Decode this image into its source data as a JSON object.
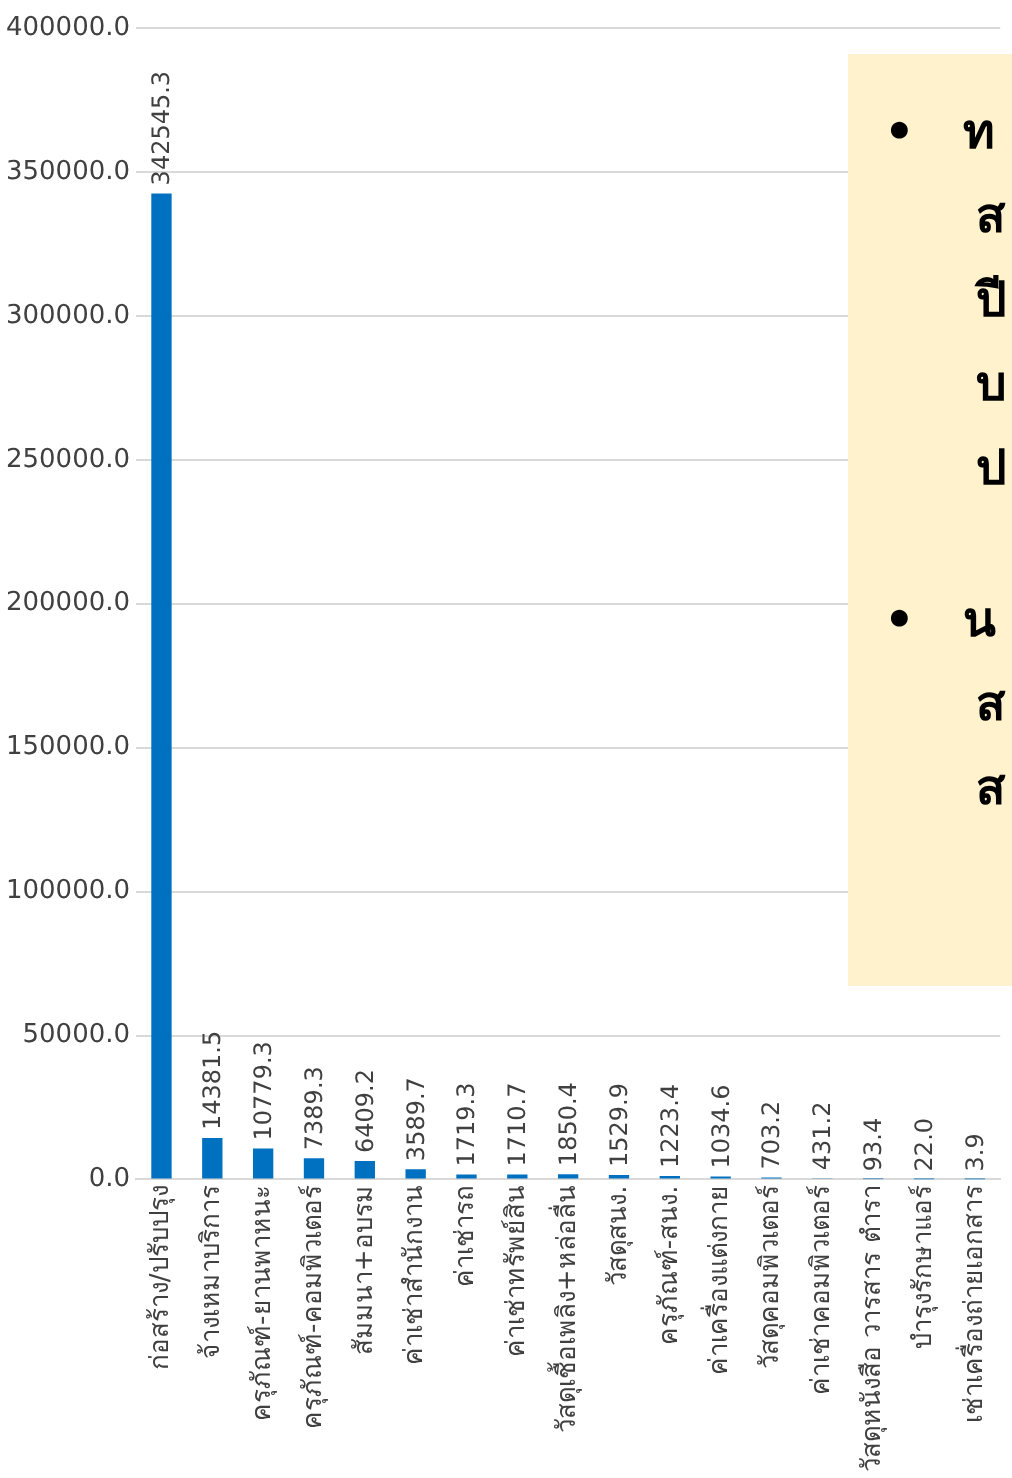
{
  "chart_data": {
    "type": "bar",
    "categories": [
      "ก่อสร้าง/ปรับปรุง",
      "จ้างเหมาบริการ",
      "ครุภัณฑ์-ยานพาหนะ",
      "ครุภัณฑ์-คอมพิวเตอร์",
      "สัมมนา+อบรม",
      "ค่าเช่าสำนักงาน",
      "ค่าเช่ารถ",
      "ค่าเช่าทรัพย์สิน",
      "วัสดุเชื้อเพลิง+หล่อลื่น",
      "วัสดุสนง.",
      "ครุภัณฑ์-สนง.",
      "ค่าเครื่องแต่งกาย",
      "วัสดุคอมพิวเตอร์",
      "ค่าเช่าคอมพิวเตอร์",
      "วัสดุหนังสือ วารสาร ตำรา",
      "บำรุงรักษาแอร์",
      "เช่าเครื่องถ่ายเอกสาร"
    ],
    "values": [
      342545.3,
      14381.5,
      10779.3,
      7389.3,
      6409.2,
      3589.7,
      1719.3,
      1710.7,
      1850.4,
      1529.9,
      1223.4,
      1034.6,
      703.2,
      431.2,
      93.4,
      22.0,
      3.9
    ],
    "value_labels": [
      "342545.3",
      "14381.5",
      "10779.3",
      "7389.3",
      "6409.2",
      "3589.7",
      "1719.3",
      "1710.7",
      "1850.4",
      "1529.9",
      "1223.4",
      "1034.6",
      "703.2",
      "431.2",
      "93.4",
      "22.0",
      "3.9"
    ],
    "color": "#0070c0",
    "ylim": [
      0,
      400000
    ],
    "yticks": [
      {
        "value": 0,
        "label": "0.0"
      },
      {
        "value": 50000,
        "label": "50000.0"
      },
      {
        "value": 100000,
        "label": "100000.0"
      },
      {
        "value": 150000,
        "label": "150000.0"
      },
      {
        "value": 200000,
        "label": "200000.0"
      },
      {
        "value": 250000,
        "label": "250000.0"
      },
      {
        "value": 300000,
        "label": "300000.0"
      },
      {
        "value": 350000,
        "label": "350000.0"
      },
      {
        "value": 400000,
        "label": "400000.0"
      }
    ],
    "grid": "y",
    "annotations": [
      "• ท\nส\nปี\nบ\nป",
      "• น\nส\nส"
    ]
  }
}
